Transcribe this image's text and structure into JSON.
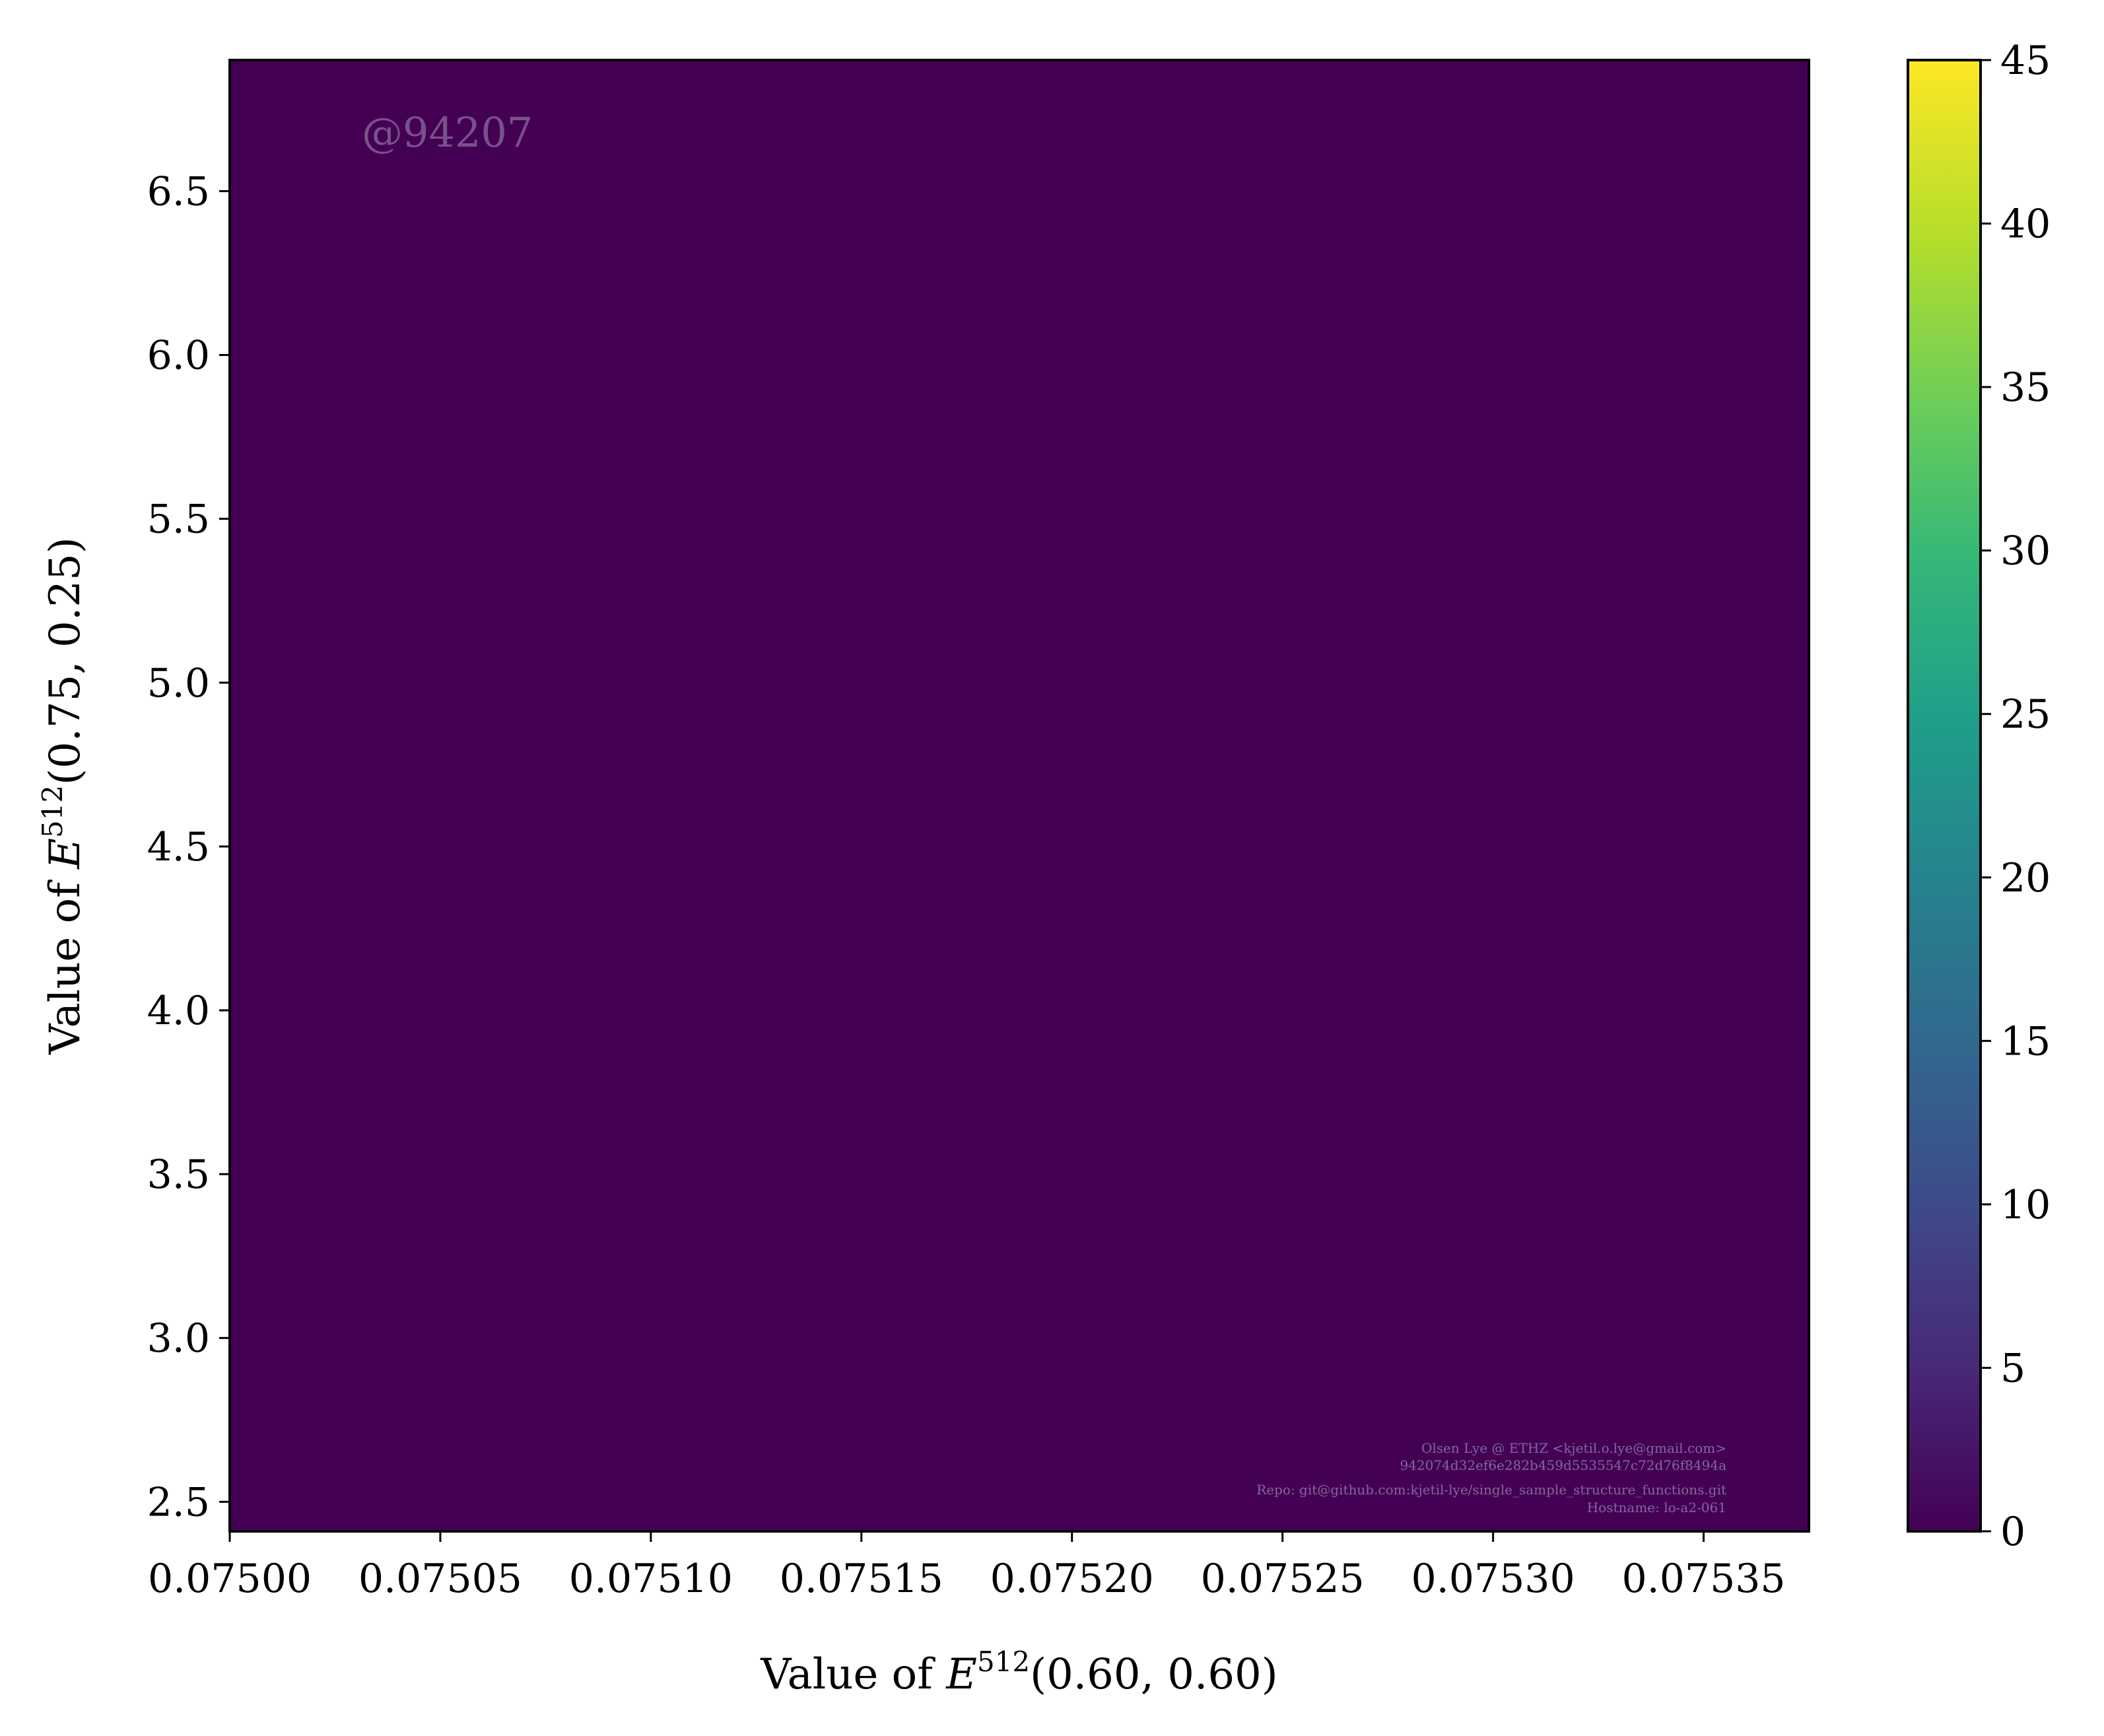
{
  "chart_data": {
    "type": "heatmap",
    "xlabel_prefix": "Value of ",
    "xlabel_math": "E",
    "xlabel_sup": "512",
    "xlabel_args": "(0.60, 0.60)",
    "ylabel_prefix": "Value of ",
    "ylabel_math": "E",
    "ylabel_sup": "512",
    "ylabel_args": "(0.75, 0.25)",
    "xlim": [
      0.075,
      0.075375
    ],
    "ylim": [
      2.41,
      6.9
    ],
    "x_ticks": [
      "0.07500",
      "0.07505",
      "0.07510",
      "0.07515",
      "0.07520",
      "0.07525",
      "0.07530",
      "0.07535"
    ],
    "y_ticks": [
      "2.5",
      "3.0",
      "3.5",
      "4.0",
      "4.5",
      "5.0",
      "5.5",
      "6.0",
      "6.5"
    ],
    "colorbar_ticks": [
      "0",
      "5",
      "10",
      "15",
      "20",
      "25",
      "30",
      "35",
      "40",
      "45"
    ],
    "colorbar_range": [
      0,
      45
    ],
    "colormap": "viridis",
    "background_color": "#440154",
    "watermark": "@94207",
    "footnote_lines": [
      "Olsen Lye @ ETHZ <kjetil.o.lye@gmail.com>",
      "942074d32ef6e282b459d5535547c72d76f8494a",
      "Repo: git@github.com:kjetil-lye/single_sample_structure_functions.git",
      "Hostname: lo-a2-061"
    ],
    "x_bins": {
      "start": 0.07502333,
      "width": 1.1667e-05,
      "count": 30
    },
    "y_bins": {
      "start": 2.41,
      "width": 0.1385,
      "count": 6
    },
    "counts": [
      [
        0,
        0,
        0,
        0,
        0,
        0,
        0,
        0,
        0,
        0,
        0,
        0,
        0,
        0,
        0,
        0,
        0,
        0,
        0,
        0,
        0,
        0,
        0,
        0,
        0,
        0,
        0,
        0,
        0,
        0
      ],
      [
        0,
        0,
        0,
        0,
        0,
        0,
        0,
        0,
        0,
        0,
        0,
        0,
        0,
        0,
        0,
        0,
        0,
        0,
        0,
        0,
        0,
        0,
        0,
        0,
        0,
        0,
        0,
        0,
        0,
        0
      ],
      [
        0,
        0,
        0,
        0,
        0,
        0,
        0,
        0,
        0,
        0,
        0,
        0,
        0,
        0,
        0,
        0,
        0,
        0,
        0,
        0,
        0,
        0,
        0,
        0,
        0,
        0,
        0,
        0,
        0,
        0
      ],
      [
        0,
        0,
        0,
        0,
        0,
        0,
        0,
        0,
        0,
        0,
        0,
        0,
        0,
        0,
        0,
        0,
        0,
        0,
        0,
        0,
        0,
        0,
        0,
        0,
        0,
        0,
        0,
        0,
        0,
        0
      ],
      [
        0,
        0,
        0,
        0,
        0,
        0,
        0,
        0,
        0,
        0,
        0,
        0,
        0,
        0,
        0,
        0,
        0,
        0,
        0,
        0,
        0,
        0,
        0,
        0,
        0,
        0,
        0,
        0,
        0,
        0
      ],
      [
        0,
        0,
        0,
        0,
        0,
        0,
        0,
        0,
        0,
        0,
        0,
        0,
        0,
        0,
        0,
        0,
        0,
        0,
        0,
        0,
        0,
        0,
        0,
        0,
        0,
        0,
        0,
        0,
        0,
        0
      ]
    ]
  }
}
